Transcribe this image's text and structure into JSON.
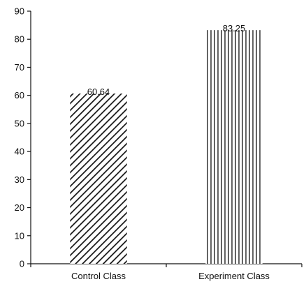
{
  "chart_data": {
    "type": "bar",
    "categories": [
      "Control Class",
      "Experiment Class"
    ],
    "values": [
      60.64,
      83.25
    ],
    "data_labels": [
      "60.64",
      "83.25"
    ],
    "title": "",
    "xlabel": "",
    "ylabel": "",
    "ylim": [
      0,
      90
    ],
    "yticks": [
      0,
      10,
      20,
      30,
      40,
      50,
      60,
      70,
      80,
      90
    ],
    "ytick_labels": [
      "0",
      "10",
      "20",
      "30",
      "40",
      "50",
      "60",
      "70",
      "80",
      "90"
    ],
    "grid": false,
    "legend": "none",
    "fills": [
      "diagonal-hatch",
      "vertical-hatch"
    ],
    "colors": {
      "ink": "#111111",
      "background": "#ffffff"
    }
  }
}
